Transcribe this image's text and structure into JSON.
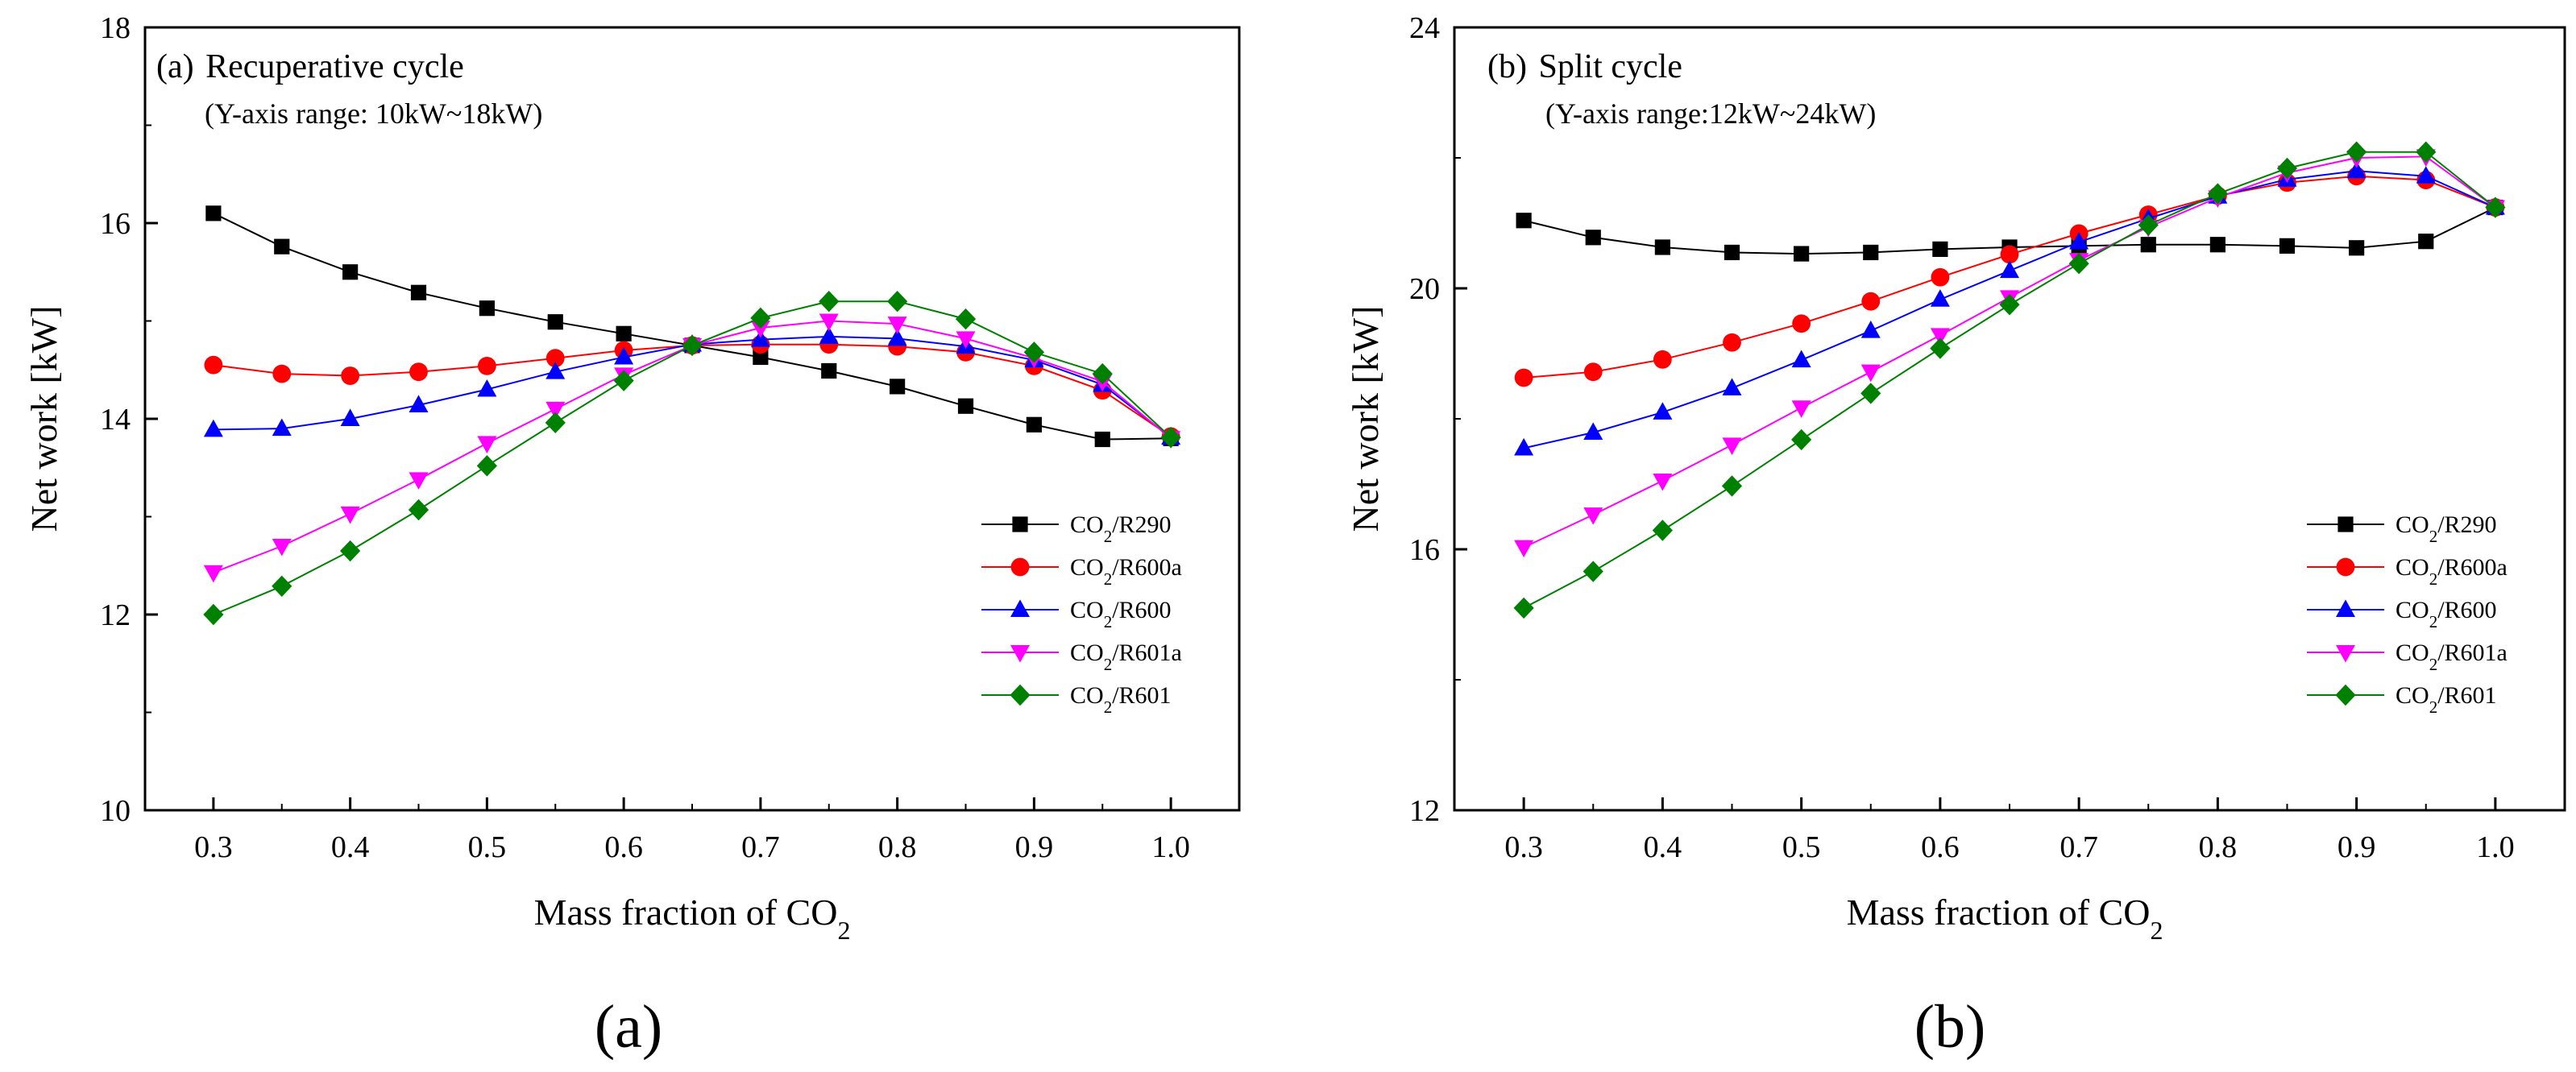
{
  "figure": {
    "sublabels": [
      "(a)",
      "(b)"
    ]
  },
  "chart_data": [
    {
      "type": "line",
      "panel_label": "(a)",
      "title": "Recuperative cycle",
      "subtitle": "(Y-axis range: 10kW~18kW)",
      "xlabel": "Mass fraction of CO2",
      "ylabel": "Net work [kW]",
      "xlim": [
        0.25,
        1.05
      ],
      "ylim": [
        10,
        18
      ],
      "xticks": [
        0.3,
        0.4,
        0.5,
        0.6,
        0.7,
        0.8,
        0.9,
        1.0
      ],
      "xtick_labels": [
        "0.3",
        "0.4",
        "0.5",
        "0.6",
        "0.7",
        "0.8",
        "0.9",
        "1.0"
      ],
      "yticks": [
        10,
        12,
        14,
        16,
        18
      ],
      "ytick_labels": [
        "10",
        "12",
        "14",
        "16",
        "18"
      ],
      "grid": false,
      "legend_position": "bottom-right",
      "x": [
        0.3,
        0.35,
        0.4,
        0.45,
        0.5,
        0.55,
        0.6,
        0.65,
        0.7,
        0.75,
        0.8,
        0.85,
        0.9,
        0.95,
        1.0
      ],
      "series": [
        {
          "name": "CO2/R290",
          "color": "#000000",
          "marker": "square",
          "values": [
            16.1,
            15.76,
            15.5,
            15.29,
            15.13,
            14.99,
            14.87,
            14.75,
            14.63,
            14.49,
            14.33,
            14.13,
            13.94,
            13.79,
            13.8
          ]
        },
        {
          "name": "CO2/R600a",
          "color": "#ff0000",
          "marker": "circle",
          "values": [
            14.55,
            14.46,
            14.44,
            14.48,
            14.54,
            14.62,
            14.7,
            14.75,
            14.76,
            14.76,
            14.74,
            14.68,
            14.54,
            14.29,
            13.82
          ]
        },
        {
          "name": "CO2/R600",
          "color": "#0000ff",
          "marker": "triangle-up",
          "values": [
            13.89,
            13.9,
            14.0,
            14.14,
            14.3,
            14.48,
            14.63,
            14.76,
            14.81,
            14.84,
            14.82,
            14.74,
            14.6,
            14.35,
            13.81
          ]
        },
        {
          "name": "CO2/R601a",
          "color": "#ff00ff",
          "marker": "triangle-down",
          "values": [
            12.43,
            12.7,
            13.03,
            13.38,
            13.75,
            14.1,
            14.45,
            14.75,
            14.93,
            15.0,
            14.97,
            14.82,
            14.62,
            14.38,
            13.8
          ]
        },
        {
          "name": "CO2/R601",
          "color": "#008000",
          "marker": "diamond",
          "values": [
            12.0,
            12.29,
            12.65,
            13.07,
            13.52,
            13.96,
            14.39,
            14.75,
            15.03,
            15.2,
            15.2,
            15.02,
            14.68,
            14.46,
            13.81
          ]
        }
      ]
    },
    {
      "type": "line",
      "panel_label": "(b)",
      "title": "Split cycle",
      "subtitle": "(Y-axis range:12kW~24kW)",
      "xlabel": "Mass fraction of CO2",
      "ylabel": "Net work [kW]",
      "xlim": [
        0.25,
        1.05
      ],
      "ylim": [
        12,
        24
      ],
      "xticks": [
        0.3,
        0.4,
        0.5,
        0.6,
        0.7,
        0.8,
        0.9,
        1.0
      ],
      "xtick_labels": [
        "0.3",
        "0.4",
        "0.5",
        "0.6",
        "0.7",
        "0.8",
        "0.9",
        "1.0"
      ],
      "yticks": [
        12,
        16,
        20,
        24
      ],
      "ytick_labels": [
        "12",
        "16",
        "20",
        "24"
      ],
      "grid": false,
      "legend_position": "bottom-right",
      "x": [
        0.3,
        0.35,
        0.4,
        0.45,
        0.5,
        0.55,
        0.6,
        0.65,
        0.7,
        0.75,
        0.8,
        0.85,
        0.9,
        0.95,
        1.0
      ],
      "series": [
        {
          "name": "CO2/R290",
          "color": "#000000",
          "marker": "square",
          "values": [
            21.04,
            20.78,
            20.63,
            20.55,
            20.53,
            20.55,
            20.6,
            20.63,
            20.65,
            20.67,
            20.67,
            20.65,
            20.62,
            20.72,
            21.24
          ]
        },
        {
          "name": "CO2/R600a",
          "color": "#ff0000",
          "marker": "circle",
          "values": [
            18.63,
            18.72,
            18.91,
            19.17,
            19.46,
            19.8,
            20.17,
            20.52,
            20.84,
            21.13,
            21.42,
            21.62,
            21.72,
            21.66,
            21.24
          ]
        },
        {
          "name": "CO2/R600",
          "color": "#0000ff",
          "marker": "triangle-up",
          "values": [
            17.55,
            17.79,
            18.1,
            18.47,
            18.9,
            19.35,
            19.83,
            20.27,
            20.71,
            21.07,
            21.41,
            21.67,
            21.8,
            21.72,
            21.24
          ]
        },
        {
          "name": "CO2/R601a",
          "color": "#ff00ff",
          "marker": "triangle-down",
          "values": [
            16.03,
            16.53,
            17.05,
            17.6,
            18.17,
            18.72,
            19.28,
            19.86,
            20.43,
            20.94,
            21.39,
            21.77,
            22.0,
            22.02,
            21.24
          ]
        },
        {
          "name": "CO2/R601",
          "color": "#008000",
          "marker": "diamond",
          "values": [
            15.1,
            15.66,
            16.29,
            16.97,
            17.68,
            18.39,
            19.08,
            19.75,
            20.38,
            20.97,
            21.45,
            21.84,
            22.09,
            22.09,
            21.24
          ]
        }
      ]
    }
  ]
}
